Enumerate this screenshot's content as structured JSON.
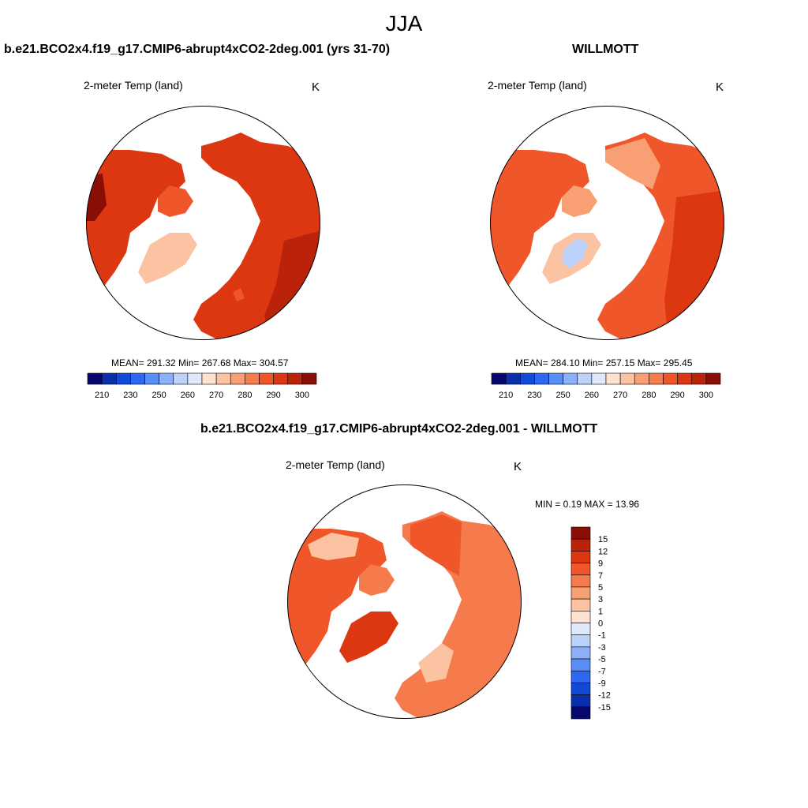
{
  "figure_title": "JJA",
  "panels": [
    {
      "title": "b.e21.BCO2x4.f19_g17.CMIP6-abrupt4xCO2-2deg.001 (yrs 31-70)",
      "variable": "2-meter Temp (land)",
      "units": "K",
      "stats": "MEAN= 291.32  Min= 267.68  Max= 304.57",
      "mean": 291.32,
      "min": 267.68,
      "max": 304.57
    },
    {
      "title": "WILLMOTT",
      "variable": "2-meter Temp (land)",
      "units": "K",
      "stats": "MEAN= 284.10  Min= 257.15  Max= 295.45",
      "mean": 284.1,
      "min": 257.15,
      "max": 295.45
    },
    {
      "title": "b.e21.BCO2x4.f19_g17.CMIP6-abrupt4xCO2-2deg.001 - WILLMOTT",
      "variable": "2-meter Temp (land)",
      "units": "K",
      "stats": "MIN =   0.19 MAX =  13.96",
      "min": 0.19,
      "max": 13.96
    }
  ],
  "colorbar_abs": {
    "colors": [
      "#08086e",
      "#0a2fa8",
      "#1448d6",
      "#2e68f0",
      "#5a8ef5",
      "#8cb0f7",
      "#bcd2fa",
      "#dfe9fb",
      "#fde3cf",
      "#fbc3a2",
      "#f8a074",
      "#f57a4c",
      "#ef562a",
      "#dd3712",
      "#bb220a",
      "#8a0e05"
    ],
    "tick_labels": [
      "210",
      "230",
      "250",
      "260",
      "270",
      "280",
      "290",
      "300"
    ]
  },
  "colorbar_diff": {
    "colors": [
      "#8a0e05",
      "#bb220a",
      "#dd3712",
      "#ef562a",
      "#f57a4c",
      "#f8a074",
      "#fbc3a2",
      "#fde3cf",
      "#dfe9fb",
      "#bcd2fa",
      "#8cb0f7",
      "#5a8ef5",
      "#2e68f0",
      "#1448d6",
      "#0a2fa8",
      "#08086e"
    ],
    "tick_labels": [
      "15",
      "12",
      "9",
      "7",
      "5",
      "3",
      "1",
      "0",
      "-1",
      "-3",
      "-5",
      "-7",
      "-9",
      "-12",
      "-15"
    ]
  }
}
